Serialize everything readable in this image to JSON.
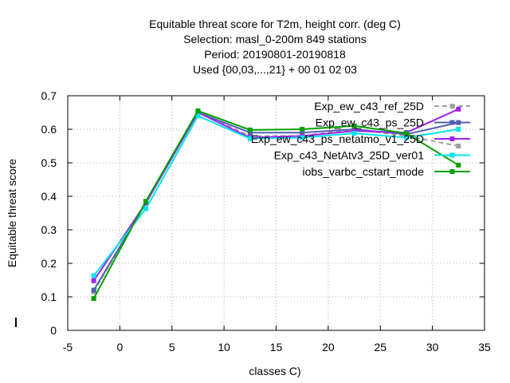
{
  "chart_data": {
    "type": "line",
    "title_lines": [
      "Equitable threat score  for T2m, height corr. (deg C)",
      "Selection: masl_0-200m    849 stations",
      "Period: 20190801-20190818",
      "Used {00,03,...,21} + 00 01 02 03"
    ],
    "xlabel": "classes C)",
    "ylabel": "Equitable threat score",
    "xlim": [
      -5,
      35
    ],
    "ylim": [
      0,
      0.7
    ],
    "xticks": [
      "-5",
      "0",
      "5",
      "10",
      "15",
      "20",
      "25",
      "30",
      "35"
    ],
    "yticks": [
      "0",
      "0.1",
      "0.2",
      "0.3",
      "0.4",
      "0.5",
      "0.6",
      "0.7"
    ],
    "x": [
      -2.5,
      2.5,
      7.5,
      12.5,
      17.5,
      22.5,
      27.5,
      32.5
    ],
    "grid": true,
    "legend_position": "top-right",
    "series": [
      {
        "name": "Exp_ew_c43_ref_25D",
        "color": "#a0a0a0",
        "dashed": true,
        "values": [
          0.115,
          0.38,
          0.65,
          0.58,
          0.58,
          0.6,
          0.58,
          0.55
        ]
      },
      {
        "name": "Exp_ew_c43_ps_25D",
        "color": "#5060b0",
        "dashed": false,
        "values": [
          0.12,
          0.38,
          0.65,
          0.59,
          0.59,
          0.6,
          0.585,
          0.62
        ]
      },
      {
        "name": "Exp_ew_c43_ps_netatmo_v1_25D",
        "color": "#a020f0",
        "dashed": false,
        "values": [
          0.148,
          0.38,
          0.65,
          0.575,
          0.58,
          0.595,
          0.59,
          0.66
        ]
      },
      {
        "name": "Exp_c43_NetAtv3_25D_ver01",
        "color": "#00e5ee",
        "dashed": false,
        "values": [
          0.163,
          0.363,
          0.64,
          0.572,
          0.575,
          0.588,
          0.575,
          0.6
        ]
      },
      {
        "name": "iobs_varbc_cstart_mode",
        "color": "#00a000",
        "dashed": false,
        "values": [
          0.095,
          0.385,
          0.655,
          0.598,
          0.6,
          0.61,
          0.588,
          0.493
        ]
      }
    ]
  }
}
